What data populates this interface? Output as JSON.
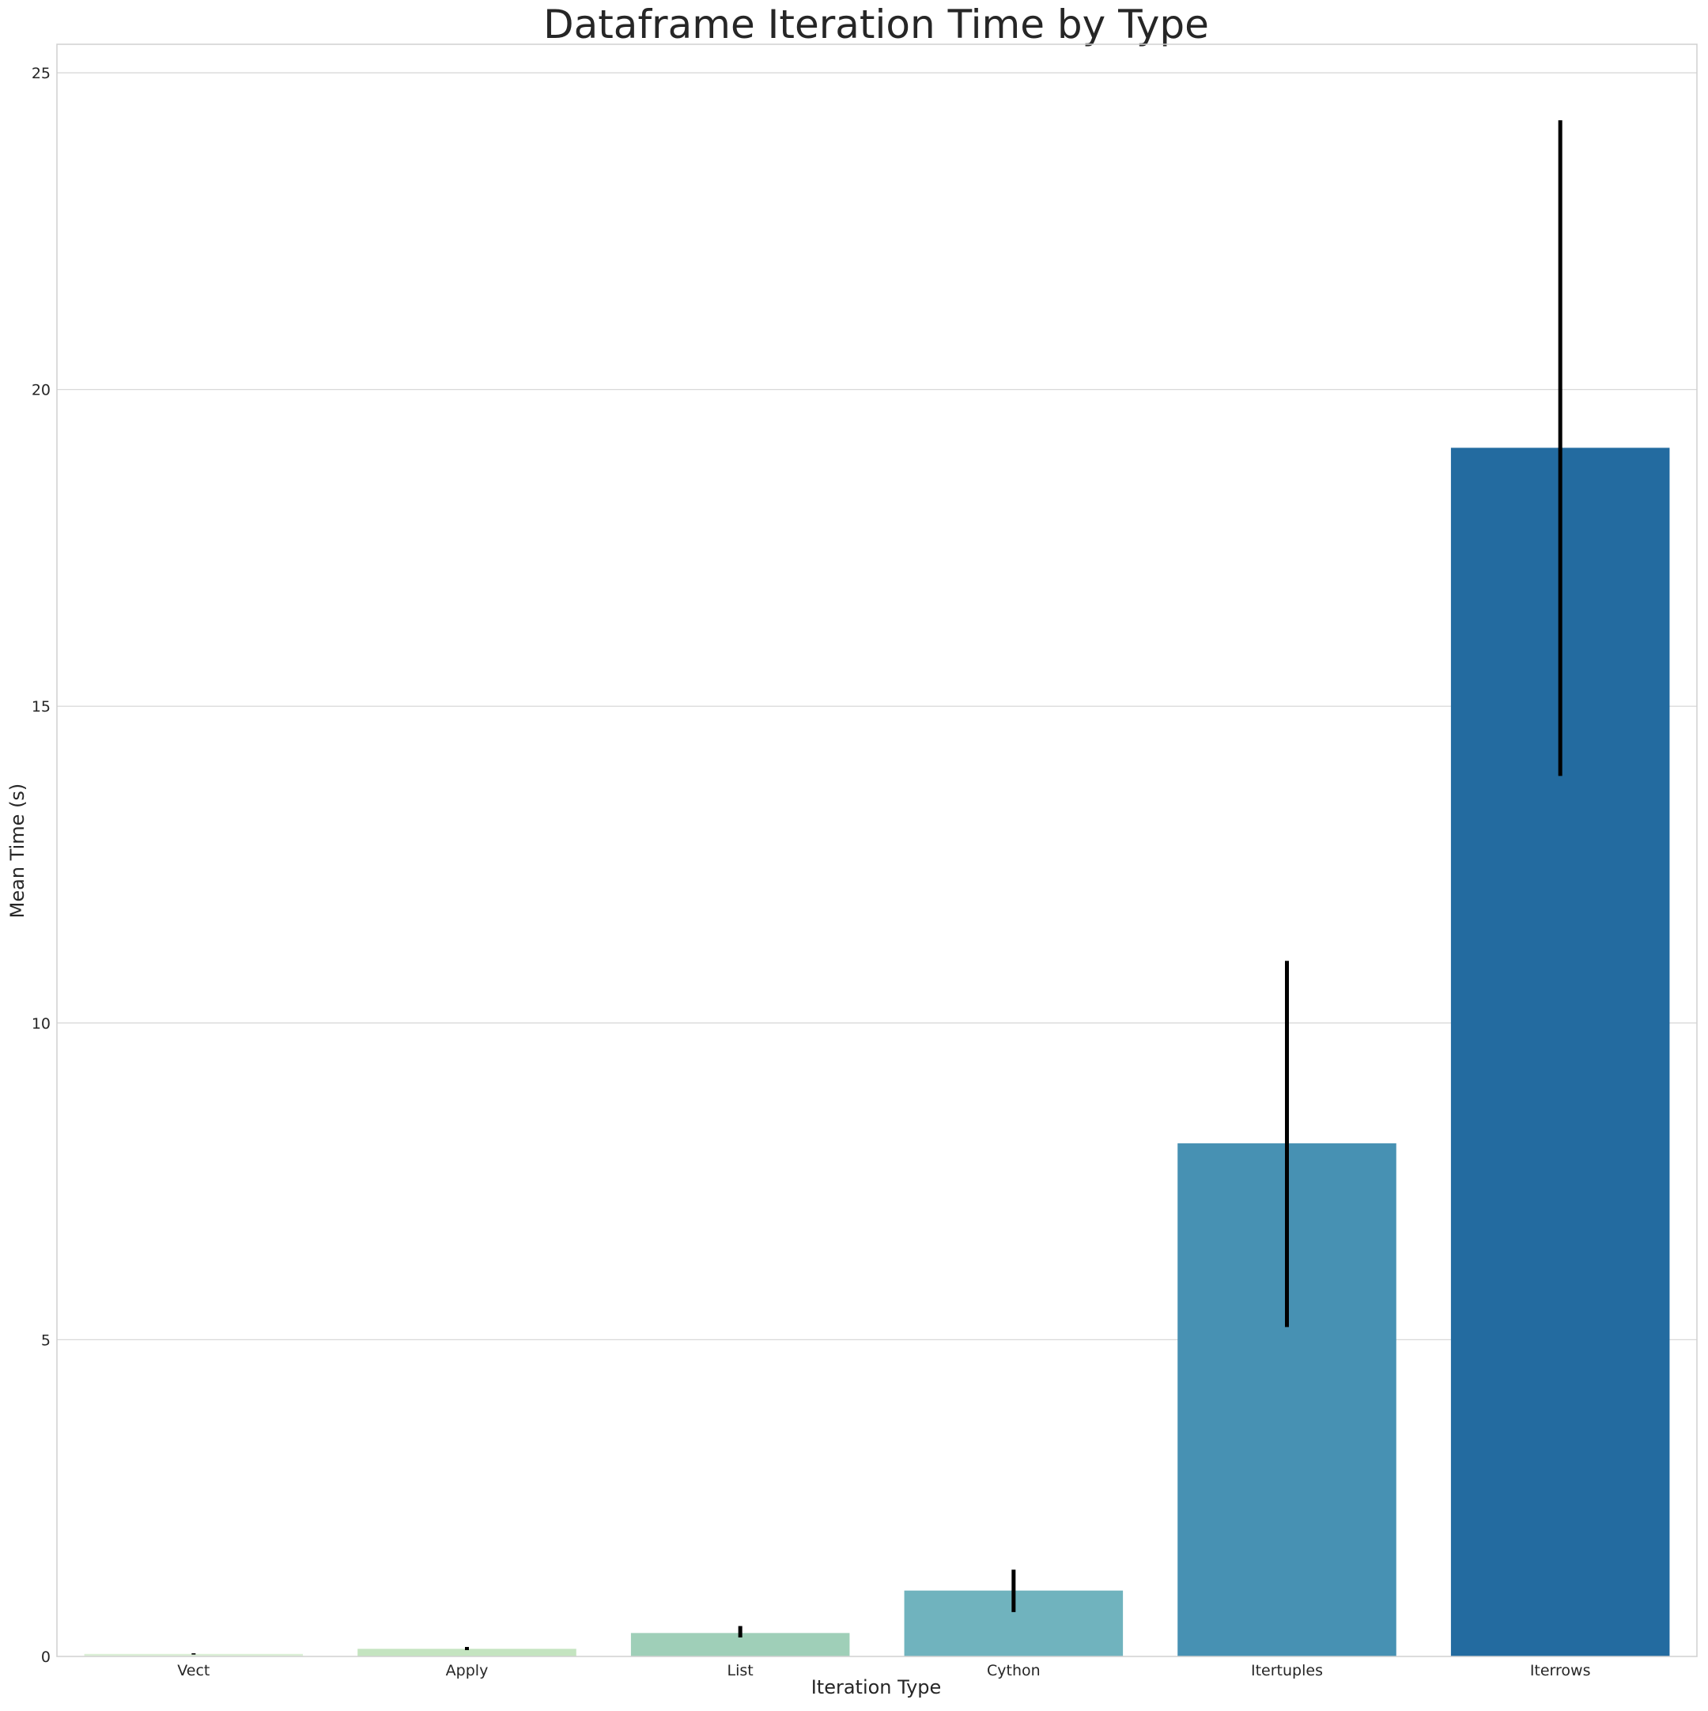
{
  "chart_data": {
    "type": "bar",
    "title": "Dataframe Iteration Time by Type",
    "xlabel": "Iteration Type",
    "ylabel": "Mean Time (s)",
    "ylim": [
      0,
      25.45
    ],
    "yticks": [
      0,
      5,
      10,
      15,
      20,
      25
    ],
    "grid": "horizontal",
    "categories": [
      "Vect",
      "Apply",
      "List",
      "Cython",
      "Itertuples",
      "Iterrows"
    ],
    "values": [
      0.04,
      0.12,
      0.37,
      1.04,
      8.1,
      19.08
    ],
    "error_low": [
      0.03,
      0.1,
      0.3,
      0.7,
      5.2,
      13.9
    ],
    "error_high": [
      0.05,
      0.15,
      0.48,
      1.37,
      10.98,
      24.25
    ],
    "colors": [
      "#dbefd6",
      "#c4e4c0",
      "#9fcfb8",
      "#70b3be",
      "#4791b3",
      "#236ba0"
    ],
    "error_color": "#000000"
  }
}
